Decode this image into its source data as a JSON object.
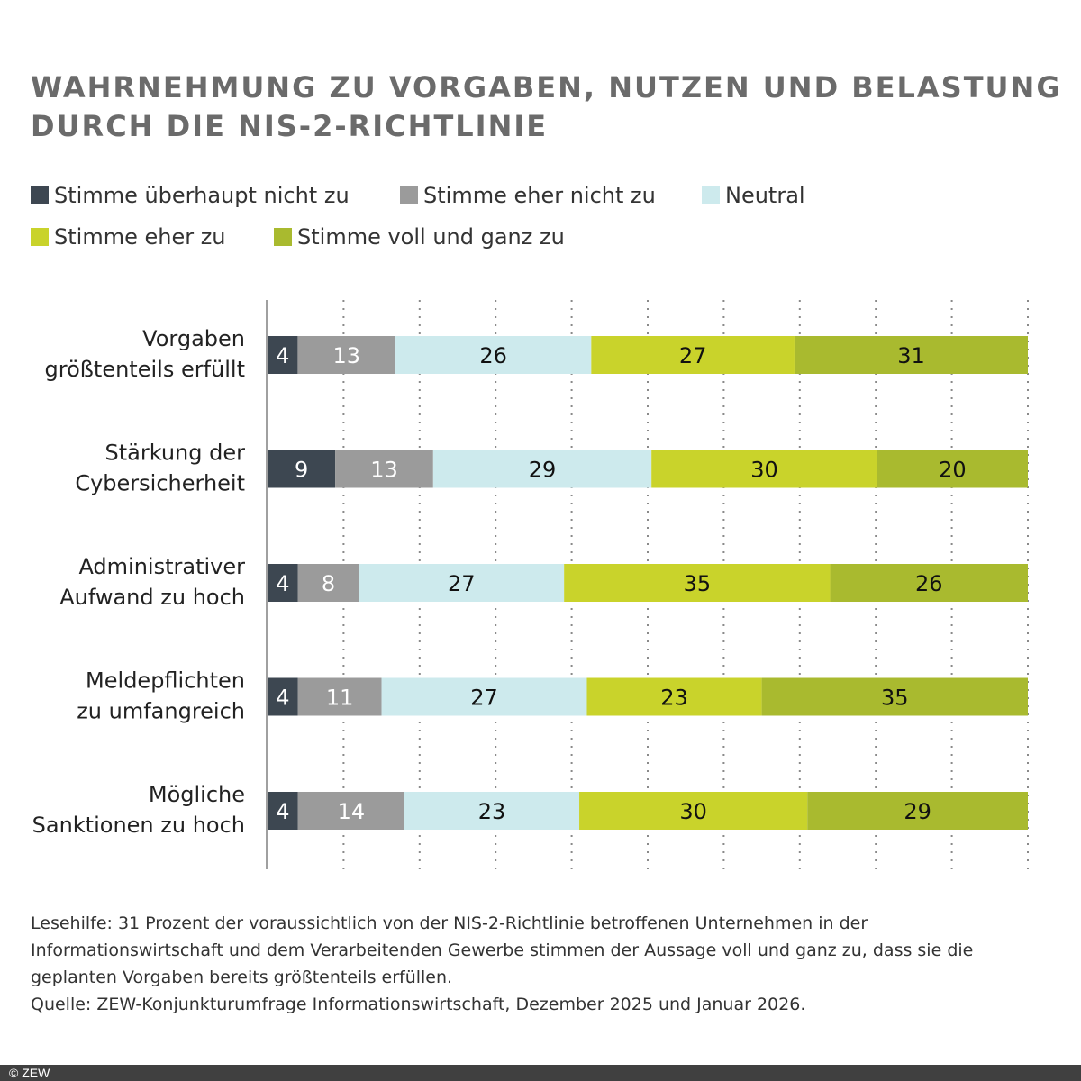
{
  "chart_data": {
    "type": "bar",
    "orientation": "horizontal",
    "stacked": true,
    "title": "WAHRNEHMUNG ZU VORGABEN, NUTZEN UND BELASTUNG\nDURCH DIE NIS-2-RICHTLINIE",
    "title_lines": [
      "WAHRNEHMUNG ZU VORGABEN, NUTZEN UND BELASTUNG",
      "DURCH DIE NIS-2-RICHTLINIE"
    ],
    "xlim": [
      0,
      100
    ],
    "grid": true,
    "legend_placement": "top-left",
    "categories": [
      [
        "Vorgaben",
        "größtenteils erfüllt"
      ],
      [
        "Stärkung der",
        "Cybersicherheit"
      ],
      [
        "Administrativer",
        "Aufwand zu hoch"
      ],
      [
        "Meldepflichten",
        "zu umfangreich"
      ],
      [
        "Mögliche",
        "Sanktionen zu hoch"
      ]
    ],
    "series": [
      {
        "name": "Stimme überhaupt nicht zu",
        "color": "#3d4751",
        "label_color": "#ffffff",
        "values": [
          4,
          9,
          4,
          4,
          4
        ]
      },
      {
        "name": "Stimme eher nicht zu",
        "color": "#9b9b9b",
        "label_color": "#ffffff",
        "values": [
          13,
          13,
          8,
          11,
          14
        ]
      },
      {
        "name": "Neutral",
        "color": "#cdeaed",
        "label_color": "#111111",
        "values": [
          26,
          29,
          27,
          27,
          23
        ]
      },
      {
        "name": "Stimme eher zu",
        "color": "#c9d32b",
        "label_color": "#111111",
        "values": [
          27,
          30,
          35,
          23,
          30
        ]
      },
      {
        "name": "Stimme voll und ganz zu",
        "color": "#a9ba2f",
        "label_color": "#111111",
        "values": [
          31,
          20,
          26,
          35,
          29
        ]
      }
    ]
  },
  "note": {
    "reading_aid": "Lesehilfe: 31 Prozent der voraussichtlich von der NIS-2-Richtlinie betroffenen Unternehmen in der Informationswirtschaft und dem Verarbeitenden Gewerbe stimmen der Aussage voll und ganz zu, dass sie die geplanten Vorgaben bereits größtenteils erfüllen.",
    "source": "Quelle: ZEW-Konjunkturumfrage Informationswirtschaft, Dezember 2025 und Januar 2026."
  },
  "footer": {
    "copyright": "© ZEW"
  }
}
